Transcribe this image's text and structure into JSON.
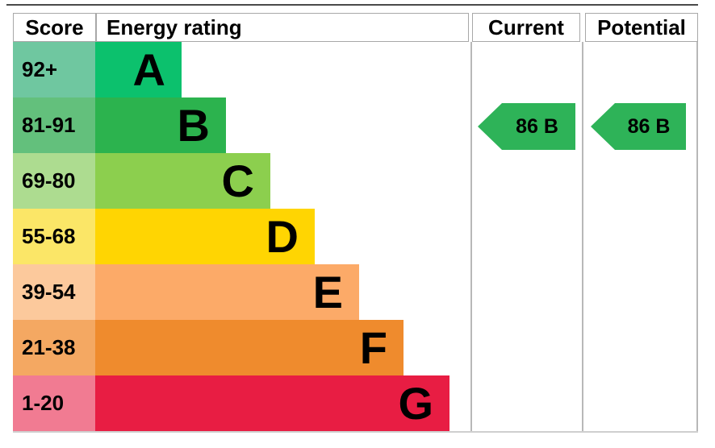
{
  "header": {
    "score": "Score",
    "energy_rating": "Energy rating",
    "current": "Current",
    "potential": "Potential"
  },
  "chart_data": {
    "type": "bar",
    "subtype": "epc_energy_rating",
    "bands": [
      {
        "letter": "A",
        "score_range": "92+",
        "bar_color": "#0cc16d",
        "score_bg": "#6fc7a0"
      },
      {
        "letter": "B",
        "score_range": "81-91",
        "bar_color": "#2cb34e",
        "score_bg": "#63c07c"
      },
      {
        "letter": "C",
        "score_range": "69-80",
        "bar_color": "#8ccf4e",
        "score_bg": "#addc90"
      },
      {
        "letter": "D",
        "score_range": "55-68",
        "bar_color": "#ffd502",
        "score_bg": "#fbe667"
      },
      {
        "letter": "E",
        "score_range": "39-54",
        "bar_color": "#fcaa68",
        "score_bg": "#fcc99c"
      },
      {
        "letter": "F",
        "score_range": "21-38",
        "bar_color": "#ef8b2d",
        "score_bg": "#f4a862"
      },
      {
        "letter": "G",
        "score_range": "1-20",
        "bar_color": "#e81d43",
        "score_bg": "#f17b92"
      }
    ],
    "current": {
      "label": "86 B",
      "value": 86,
      "band": "B",
      "arrow_color": "#2eb358"
    },
    "potential": {
      "label": "86 B",
      "value": 86,
      "band": "B",
      "arrow_color": "#2eb358"
    }
  }
}
